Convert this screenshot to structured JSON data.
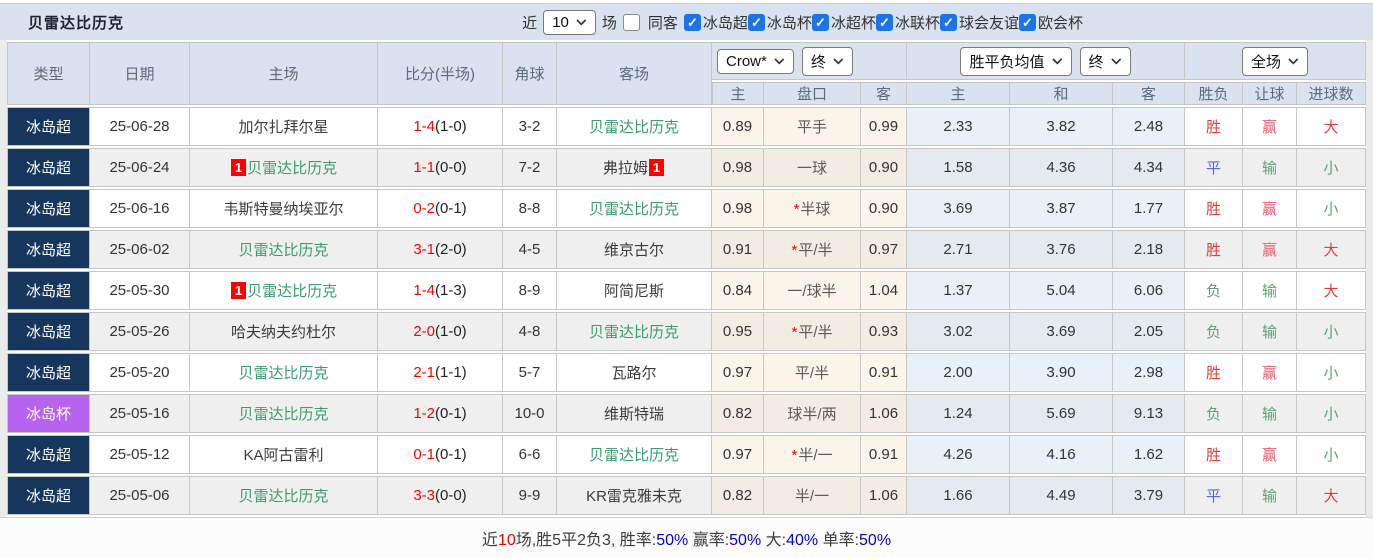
{
  "title": "贝雷达比历克",
  "topbar": {
    "near_label": "近",
    "matches_select": "10",
    "unit_label": "场",
    "same_away_label": "同客",
    "same_away_checked": false,
    "leagues": [
      {
        "label": "冰岛超",
        "checked": true
      },
      {
        "label": "冰岛杯",
        "checked": true
      },
      {
        "label": "冰超杯",
        "checked": true
      },
      {
        "label": "冰联杯",
        "checked": true
      },
      {
        "label": "球会友谊",
        "checked": true
      },
      {
        "label": "欧会杯",
        "checked": true
      }
    ]
  },
  "header": {
    "cols": [
      "类型",
      "日期",
      "主场",
      "比分(半场)",
      "角球",
      "客场"
    ],
    "odds_source_select": "Crow*",
    "odds_time_select": "终",
    "mean_source_select": "胜平负均值",
    "mean_time_select": "终",
    "scope_select": "全场",
    "sub_cols": [
      "主",
      "盘口",
      "客",
      "主",
      "和",
      "客",
      "胜负",
      "让球",
      "进球数"
    ]
  },
  "palette": {
    "red": "#e23c3c",
    "pink": "#ee5b70",
    "blue": "#5a64e6",
    "green": "#5ea274"
  },
  "table": {
    "rows": [
      {
        "type": "冰岛超",
        "type_style": "league",
        "date": "25-06-28",
        "home": {
          "badge": "",
          "name": "加尔扎拜尔星",
          "self": false
        },
        "score": "1-4",
        "half": "(1-0)",
        "corner": "3-2",
        "away": {
          "badge": "",
          "name": "贝雷达比历克",
          "self": true
        },
        "odds": {
          "home": "0.89",
          "star": false,
          "line": "平手",
          "away": "0.99"
        },
        "mean": [
          "2.33",
          "3.82",
          "2.48"
        ],
        "results": [
          {
            "t": "胜",
            "c": "red"
          },
          {
            "t": "赢",
            "c": "pink"
          },
          {
            "t": "大",
            "c": "red"
          }
        ]
      },
      {
        "type": "冰岛超",
        "type_style": "league",
        "date": "25-06-24",
        "home": {
          "badge": "1",
          "name": "贝雷达比历克",
          "self": true
        },
        "score": "1-1",
        "half": "(0-0)",
        "corner": "7-2",
        "away": {
          "badge": "1",
          "name": "弗拉姆",
          "self": false
        },
        "odds": {
          "home": "0.98",
          "star": false,
          "line": "一球",
          "away": "0.90"
        },
        "mean": [
          "1.58",
          "4.36",
          "4.34"
        ],
        "results": [
          {
            "t": "平",
            "c": "blue"
          },
          {
            "t": "输",
            "c": "green"
          },
          {
            "t": "小",
            "c": "green"
          }
        ]
      },
      {
        "type": "冰岛超",
        "type_style": "league",
        "date": "25-06-16",
        "home": {
          "badge": "",
          "name": "韦斯特曼纳埃亚尔",
          "self": false
        },
        "score": "0-2",
        "half": "(0-1)",
        "corner": "8-8",
        "away": {
          "badge": "",
          "name": "贝雷达比历克",
          "self": true
        },
        "odds": {
          "home": "0.98",
          "star": true,
          "line": "半球",
          "away": "0.90"
        },
        "mean": [
          "3.69",
          "3.87",
          "1.77"
        ],
        "results": [
          {
            "t": "胜",
            "c": "red"
          },
          {
            "t": "赢",
            "c": "pink"
          },
          {
            "t": "小",
            "c": "green"
          }
        ]
      },
      {
        "type": "冰岛超",
        "type_style": "league",
        "date": "25-06-02",
        "home": {
          "badge": "",
          "name": "贝雷达比历克",
          "self": true
        },
        "score": "3-1",
        "half": "(2-0)",
        "corner": "4-5",
        "away": {
          "badge": "",
          "name": "维京古尔",
          "self": false
        },
        "odds": {
          "home": "0.91",
          "star": true,
          "line": "平/半",
          "away": "0.97"
        },
        "mean": [
          "2.71",
          "3.76",
          "2.18"
        ],
        "results": [
          {
            "t": "胜",
            "c": "red"
          },
          {
            "t": "赢",
            "c": "pink"
          },
          {
            "t": "大",
            "c": "red"
          }
        ]
      },
      {
        "type": "冰岛超",
        "type_style": "league",
        "date": "25-05-30",
        "home": {
          "badge": "1",
          "name": "贝雷达比历克",
          "self": true
        },
        "score": "1-4",
        "half": "(1-3)",
        "corner": "8-9",
        "away": {
          "badge": "",
          "name": "阿简尼斯",
          "self": false
        },
        "odds": {
          "home": "0.84",
          "star": false,
          "line": "一/球半",
          "away": "1.04"
        },
        "mean": [
          "1.37",
          "5.04",
          "6.06"
        ],
        "results": [
          {
            "t": "负",
            "c": "green"
          },
          {
            "t": "输",
            "c": "green"
          },
          {
            "t": "大",
            "c": "red"
          }
        ]
      },
      {
        "type": "冰岛超",
        "type_style": "league",
        "date": "25-05-26",
        "home": {
          "badge": "",
          "name": "哈夫纳夫约杜尔",
          "self": false
        },
        "score": "2-0",
        "half": "(1-0)",
        "corner": "4-8",
        "away": {
          "badge": "",
          "name": "贝雷达比历克",
          "self": true
        },
        "odds": {
          "home": "0.95",
          "star": true,
          "line": "平/半",
          "away": "0.93"
        },
        "mean": [
          "3.02",
          "3.69",
          "2.05"
        ],
        "results": [
          {
            "t": "负",
            "c": "green"
          },
          {
            "t": "输",
            "c": "green"
          },
          {
            "t": "小",
            "c": "green"
          }
        ]
      },
      {
        "type": "冰岛超",
        "type_style": "league",
        "date": "25-05-20",
        "home": {
          "badge": "",
          "name": "贝雷达比历克",
          "self": true
        },
        "score": "2-1",
        "half": "(1-1)",
        "corner": "5-7",
        "away": {
          "badge": "",
          "name": "瓦路尔",
          "self": false
        },
        "odds": {
          "home": "0.97",
          "star": false,
          "line": "平/半",
          "away": "0.91"
        },
        "mean": [
          "2.00",
          "3.90",
          "2.98"
        ],
        "results": [
          {
            "t": "胜",
            "c": "red"
          },
          {
            "t": "赢",
            "c": "pink"
          },
          {
            "t": "小",
            "c": "green"
          }
        ]
      },
      {
        "type": "冰岛杯",
        "type_style": "cup",
        "date": "25-05-16",
        "home": {
          "badge": "",
          "name": "贝雷达比历克",
          "self": true
        },
        "score": "1-2",
        "half": "(0-1)",
        "corner": "10-0",
        "away": {
          "badge": "",
          "name": "维斯特瑞",
          "self": false
        },
        "odds": {
          "home": "0.82",
          "star": false,
          "line": "球半/两",
          "away": "1.06"
        },
        "mean": [
          "1.24",
          "5.69",
          "9.13"
        ],
        "results": [
          {
            "t": "负",
            "c": "green"
          },
          {
            "t": "输",
            "c": "green"
          },
          {
            "t": "小",
            "c": "green"
          }
        ]
      },
      {
        "type": "冰岛超",
        "type_style": "league",
        "date": "25-05-12",
        "home": {
          "badge": "",
          "name": "KA阿古雷利",
          "self": false
        },
        "score": "0-1",
        "half": "(0-1)",
        "corner": "6-6",
        "away": {
          "badge": "",
          "name": "贝雷达比历克",
          "self": true
        },
        "odds": {
          "home": "0.97",
          "star": true,
          "line": "半/一",
          "away": "0.91"
        },
        "mean": [
          "4.26",
          "4.16",
          "1.62"
        ],
        "results": [
          {
            "t": "胜",
            "c": "red"
          },
          {
            "t": "赢",
            "c": "pink"
          },
          {
            "t": "小",
            "c": "green"
          }
        ]
      },
      {
        "type": "冰岛超",
        "type_style": "league",
        "date": "25-05-06",
        "home": {
          "badge": "",
          "name": "贝雷达比历克",
          "self": true
        },
        "score": "3-3",
        "half": "(0-0)",
        "corner": "9-9",
        "away": {
          "badge": "",
          "name": "KR雷克雅未克",
          "self": false
        },
        "odds": {
          "home": "0.82",
          "star": false,
          "line": "半/一",
          "away": "1.06"
        },
        "mean": [
          "1.66",
          "4.49",
          "3.79"
        ],
        "results": [
          {
            "t": "平",
            "c": "blue"
          },
          {
            "t": "输",
            "c": "green"
          },
          {
            "t": "大",
            "c": "red"
          }
        ]
      }
    ]
  },
  "summary": [
    {
      "text": "近",
      "c": "dark"
    },
    {
      "text": "10",
      "c": "red"
    },
    {
      "text": "场,胜5平2负3, 胜率:",
      "c": "dark"
    },
    {
      "text": "50%",
      "c": "blue"
    },
    {
      "text": " 赢率:",
      "c": "dark"
    },
    {
      "text": "50%",
      "c": "blue"
    },
    {
      "text": " 大:",
      "c": "dark"
    },
    {
      "text": "40%",
      "c": "blue"
    },
    {
      "text": " 单率:",
      "c": "dark"
    },
    {
      "text": "50%",
      "c": "blue"
    }
  ]
}
